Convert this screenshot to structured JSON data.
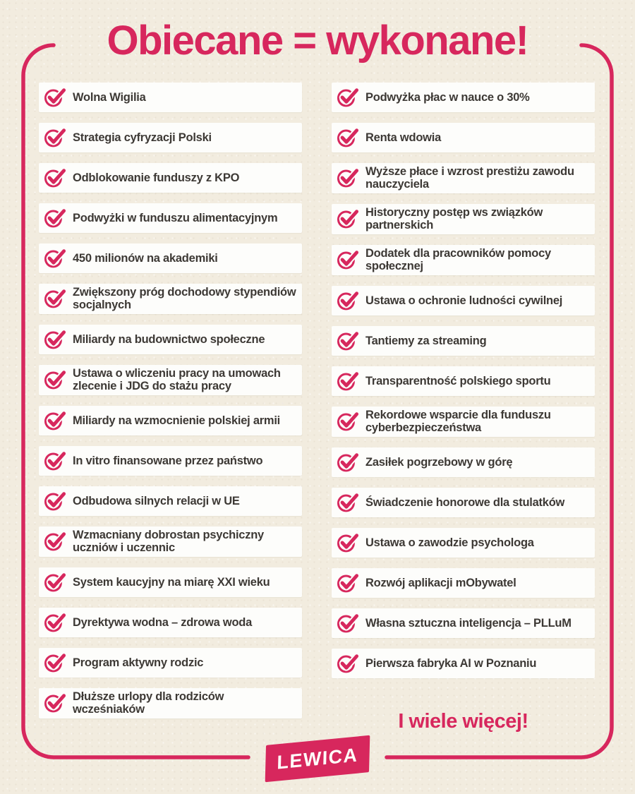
{
  "poster": {
    "title": "Obiecane = wykonane!",
    "footer_note": "I wiele więcej!",
    "brand": "LEWICA"
  },
  "colors": {
    "pink": "#d7275d",
    "cream": "#f2ecdf",
    "row_bg": "#fdfdfb",
    "text": "#3d3935"
  },
  "checklist": {
    "icon": "check-circle-icon",
    "left": [
      "Wolna Wigilia",
      "Strategia cyfryzacji Polski",
      "Odblokowanie funduszy z KPO",
      "Podwyżki w funduszu alimentacyjnym",
      "450 milionów na akademiki",
      "Zwiększony próg dochodowy stypendiów socjalnych",
      "Miliardy na budownictwo społeczne",
      "Ustawa o wliczeniu pracy na umowach zlecenie i JDG do stażu pracy",
      "Miliardy na wzmocnienie polskiej armii",
      "In vitro finansowane przez państwo",
      "Odbudowa silnych relacji w UE",
      "Wzmacniany dobrostan psychiczny uczniów i uczennic",
      "System kaucyjny na miarę XXI wieku",
      "Dyrektywa wodna – zdrowa woda",
      "Program aktywny rodzic",
      "Dłuższe urlopy dla rodziców wcześniaków"
    ],
    "right": [
      "Podwyżka płac w nauce o 30%",
      "Renta wdowia",
      "Wyższe płace i wzrost prestiżu zawodu nauczyciela",
      "Historyczny postęp ws związków partnerskich",
      "Dodatek dla pracowników pomocy społecznej",
      "Ustawa o ochronie ludności cywilnej",
      "Tantiemy za streaming",
      "Transparentność polskiego sportu",
      "Rekordowe wsparcie dla funduszu cyberbezpieczeństwa",
      "Zasiłek pogrzebowy w górę",
      "Świadczenie honorowe dla stulatków",
      "Ustawa o zawodzie psychologa",
      "Rozwój aplikacji mObywatel",
      "Własna sztuczna inteligencja – PLLuM",
      "Pierwsza fabryka AI w Poznaniu"
    ]
  }
}
